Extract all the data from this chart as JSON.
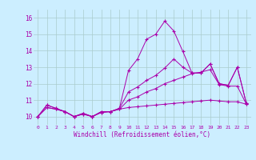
{
  "title": "",
  "xlabel": "Windchill (Refroidissement éolien,°C)",
  "ylabel": "",
  "bg_color": "#cceeff",
  "grid_color": "#aacccc",
  "line_color": "#aa00aa",
  "ylim": [
    9.5,
    16.5
  ],
  "xlim": [
    -0.5,
    23.5
  ],
  "series": [
    [
      10.0,
      10.7,
      10.5,
      10.3,
      10.0,
      10.2,
      10.0,
      10.3,
      10.3,
      10.5,
      12.8,
      13.5,
      14.7,
      15.0,
      15.8,
      15.2,
      13.95,
      12.65,
      12.65,
      13.2,
      12.0,
      11.9,
      13.0,
      10.8
    ],
    [
      10.0,
      10.7,
      10.5,
      10.3,
      10.0,
      10.2,
      10.0,
      10.3,
      10.3,
      10.5,
      11.5,
      11.8,
      12.2,
      12.5,
      12.95,
      13.5,
      13.0,
      12.65,
      12.65,
      13.2,
      12.0,
      11.9,
      13.0,
      10.8
    ],
    [
      10.0,
      10.55,
      10.45,
      10.3,
      10.0,
      10.15,
      10.0,
      10.25,
      10.3,
      10.45,
      11.0,
      11.2,
      11.5,
      11.7,
      12.0,
      12.2,
      12.4,
      12.6,
      12.7,
      12.85,
      11.95,
      11.85,
      11.85,
      10.75
    ],
    [
      10.0,
      10.55,
      10.45,
      10.3,
      10.0,
      10.15,
      10.0,
      10.25,
      10.3,
      10.45,
      10.55,
      10.6,
      10.65,
      10.7,
      10.75,
      10.8,
      10.85,
      10.9,
      10.95,
      11.0,
      10.95,
      10.9,
      10.9,
      10.75
    ]
  ],
  "yticks": [
    10,
    11,
    12,
    13,
    14,
    15,
    16
  ],
  "xticks": [
    0,
    1,
    2,
    3,
    4,
    5,
    6,
    7,
    8,
    9,
    10,
    11,
    12,
    13,
    14,
    15,
    16,
    17,
    18,
    19,
    20,
    21,
    22,
    23
  ]
}
